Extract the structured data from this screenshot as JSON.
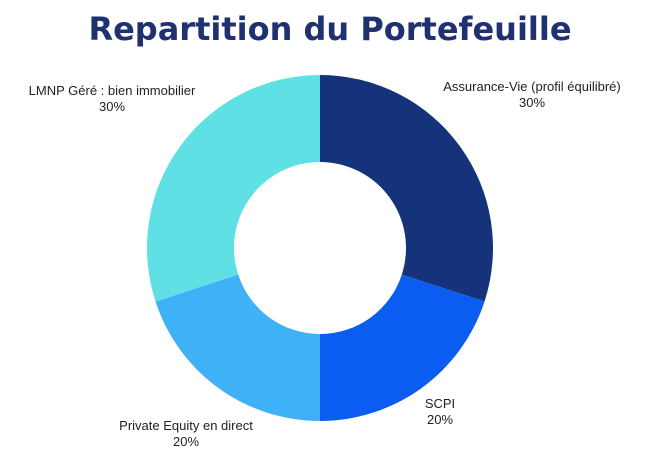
{
  "chart_data": {
    "type": "pie",
    "title": "Repartition du Portefeuille",
    "donut": true,
    "slices": [
      {
        "label": "Assurance-Vie (profil équilibré)",
        "value": 30,
        "value_label": "30%",
        "color": "#14337a"
      },
      {
        "label": "SCPI",
        "value": 20,
        "value_label": "20%",
        "color": "#0b5cf0"
      },
      {
        "label": "Private Equity en direct",
        "value": 20,
        "value_label": "20%",
        "color": "#3fb2f7"
      },
      {
        "label": "LMNP Géré : bien immobilier",
        "value": 30,
        "value_label": "30%",
        "color": "#5ee0e5"
      }
    ]
  }
}
